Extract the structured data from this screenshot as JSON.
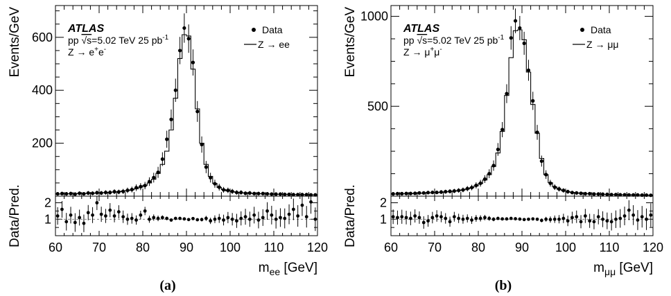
{
  "chart_data": [
    {
      "type": "scatter",
      "panel_label": "(a)",
      "atlas_label": "ATLAS",
      "info_line1_prefix": "pp ",
      "info_line1_sqrt": "√s",
      "info_line1_suffix": "=5.02 TeV 25 pb",
      "info_line1_sup": "-1",
      "info_line2_base": "Z → e",
      "info_line2_sup1": "+",
      "info_line2_mid": "e",
      "info_line2_sup2": "-",
      "legend": {
        "data": "Data",
        "prediction": "Z → ee",
        "position": "top-right"
      },
      "ylabel_main": "Events/GeV",
      "ylabel_ratio": "Data/Pred.",
      "xlabel_base": "m",
      "xlabel_sub": "ee",
      "xlabel_unit": " [GeV]",
      "xlim": [
        60,
        120
      ],
      "ylim": [
        0,
        720
      ],
      "ratio_ylim": [
        0,
        2.4
      ],
      "xticks": [
        60,
        70,
        80,
        90,
        100,
        110,
        120
      ],
      "yticks": [
        200,
        400,
        600
      ],
      "ratio_yticks": [
        1,
        2
      ],
      "bin_edges_start": 60,
      "bin_width": 1,
      "prediction": [
        8,
        8,
        9,
        9,
        9,
        10,
        10,
        11,
        11,
        12,
        13,
        14,
        15,
        16,
        17,
        19,
        21,
        24,
        28,
        34,
        41,
        50,
        64,
        86,
        120,
        170,
        250,
        370,
        520,
        610,
        605,
        480,
        330,
        200,
        120,
        75,
        48,
        33,
        25,
        20,
        17,
        15,
        13,
        12,
        11,
        10,
        9,
        9,
        8,
        8,
        7,
        7,
        7,
        6,
        6,
        6,
        6,
        5,
        5,
        5
      ],
      "data": [
        9,
        10,
        9,
        10,
        8,
        11,
        9,
        12,
        11,
        13,
        12,
        14,
        14,
        17,
        16,
        18,
        22,
        25,
        32,
        36,
        40,
        55,
        70,
        90,
        140,
        215,
        290,
        400,
        550,
        635,
        595,
        505,
        320,
        195,
        110,
        70,
        47,
        34,
        24,
        22,
        18,
        14,
        14,
        11,
        12,
        10,
        10,
        10,
        9,
        8,
        8,
        8,
        7,
        7,
        6,
        6,
        6,
        6,
        5,
        5
      ],
      "ratio": [
        1.2,
        1.6,
        0.85,
        1.25,
        0.8,
        1.1,
        0.75,
        1.4,
        1.25,
        2.0,
        1.3,
        1.2,
        1.55,
        1.2,
        1.45,
        1.15,
        1.0,
        1.05,
        0.95,
        1.25,
        1.5,
        1.0,
        1.1,
        1.05,
        1.1,
        1.05,
        0.95,
        1.05,
        1.05,
        1.02,
        0.98,
        1.04,
        0.97,
        0.98,
        1.05,
        0.9,
        1.0,
        1.05,
        0.95,
        1.1,
        1.0,
        0.9,
        1.05,
        1.15,
        1.0,
        1.25,
        0.95,
        1.1,
        1.5,
        1.25,
        1.0,
        1.1,
        1.05,
        1.3,
        1.6,
        1.2,
        1.85,
        1.15,
        2.05,
        1.0
      ]
    },
    {
      "type": "scatter",
      "panel_label": "(b)",
      "atlas_label": "ATLAS",
      "info_line1_prefix": "pp ",
      "info_line1_sqrt": "√s",
      "info_line1_suffix": "=5.02 TeV 25 pb",
      "info_line1_sup": "-1",
      "info_line2_base": "Z → μ",
      "info_line2_sup1": "+",
      "info_line2_mid": "μ",
      "info_line2_sup2": "-",
      "legend": {
        "data": "Data",
        "prediction": "Z → μμ",
        "position": "top-right"
      },
      "ylabel_main": "Events/GeV",
      "ylabel_ratio": "Data/Pred.",
      "xlabel_base": "m",
      "xlabel_sub": "μμ",
      "xlabel_unit": " [GeV]",
      "xlim": [
        60,
        120
      ],
      "ylim": [
        0,
        1060
      ],
      "ratio_ylim": [
        0,
        2.4
      ],
      "xticks": [
        60,
        70,
        80,
        90,
        100,
        110,
        120
      ],
      "yticks": [
        500,
        1000
      ],
      "ratio_yticks": [
        1,
        2
      ],
      "bin_edges_start": 60,
      "bin_width": 1,
      "prediction": [
        12,
        12,
        13,
        13,
        14,
        15,
        16,
        17,
        18,
        19,
        20,
        22,
        24,
        26,
        28,
        31,
        35,
        40,
        47,
        57,
        70,
        90,
        120,
        165,
        240,
        360,
        560,
        770,
        920,
        925,
        870,
        690,
        510,
        350,
        210,
        120,
        75,
        52,
        39,
        31,
        25,
        21,
        18,
        16,
        14,
        13,
        12,
        11,
        10,
        10,
        9,
        9,
        8,
        8,
        8,
        7,
        7,
        7,
        6,
        6
      ],
      "data": [
        13,
        14,
        14,
        15,
        15,
        16,
        18,
        18,
        20,
        21,
        21,
        23,
        25,
        27,
        29,
        32,
        35,
        42,
        48,
        60,
        72,
        95,
        125,
        170,
        260,
        370,
        570,
        880,
        975,
        935,
        850,
        700,
        530,
        355,
        195,
        120,
        72,
        50,
        40,
        32,
        25,
        20,
        18,
        16,
        14,
        14,
        12,
        12,
        11,
        10,
        9,
        9,
        8,
        8,
        7,
        7,
        7,
        6,
        6,
        5
      ],
      "ratio": [
        1.15,
        1.1,
        1.15,
        1.1,
        1.05,
        1.2,
        1.1,
        0.8,
        0.9,
        1.1,
        1.2,
        1.15,
        1.05,
        0.85,
        1.15,
        1.05,
        1.0,
        1.05,
        0.95,
        1.05,
        1.05,
        1.1,
        1.05,
        1.0,
        1.05,
        1.02,
        1.02,
        1.05,
        1.03,
        1.01,
        0.98,
        1.0,
        1.02,
        1.0,
        0.93,
        1.0,
        0.98,
        1.0,
        1.0,
        1.05,
        0.9,
        1.1,
        1.15,
        0.85,
        1.2,
        0.9,
        0.85,
        1.15,
        1.0,
        0.9,
        0.85,
        1.0,
        1.05,
        1.2,
        1.55,
        1.25,
        0.95,
        1.15,
        1.0,
        1.25
      ]
    }
  ]
}
